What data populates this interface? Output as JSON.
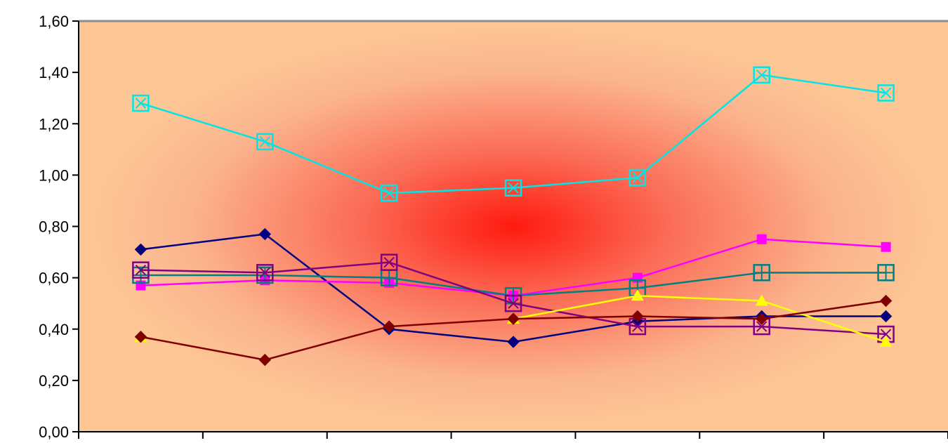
{
  "chart_data": {
    "type": "line",
    "title": "",
    "xlabel": "",
    "ylabel": "",
    "ylim": [
      0,
      1.6
    ],
    "y_ticks": [
      "0,00",
      "0,20",
      "0,40",
      "0,60",
      "0,80",
      "1,00",
      "1,20",
      "1,40",
      "1,60"
    ],
    "categories": [
      "",
      "",
      "",
      "",
      "",
      "",
      ""
    ],
    "grid": false,
    "legend": "none",
    "background": "radial gradient, red center fading to peach",
    "colors": {
      "bg_center": "#ff1a0f",
      "bg_edge": "#fdc795",
      "top_border": "#8c8c8c"
    },
    "series": [
      {
        "color": "#00e5e5",
        "marker": "square-x-hollow",
        "values": [
          1.28,
          1.13,
          0.93,
          0.95,
          0.99,
          1.39,
          1.32
        ]
      },
      {
        "color": "#000080",
        "marker": "diamond-filled",
        "values": [
          0.71,
          0.77,
          0.4,
          0.35,
          0.43,
          0.45,
          0.45
        ]
      },
      {
        "color": "#ff00ff",
        "marker": "square-filled",
        "values": [
          0.57,
          0.59,
          0.58,
          0.53,
          0.6,
          0.75,
          0.72
        ]
      },
      {
        "color": "#008080",
        "marker": "square-plus-hollow",
        "values": [
          0.61,
          0.61,
          0.6,
          0.53,
          0.56,
          0.62,
          0.62
        ]
      },
      {
        "color": "#800080",
        "marker": "square-x-hollow",
        "values": [
          0.63,
          0.62,
          0.66,
          0.5,
          0.41,
          0.41,
          0.38
        ]
      },
      {
        "color": "#ffff00",
        "marker": "triangle-filled",
        "values": [
          0.37,
          null,
          null,
          0.44,
          0.53,
          0.51,
          0.35
        ]
      },
      {
        "color": "#800000",
        "marker": "diamond-filled",
        "values": [
          0.37,
          0.28,
          0.41,
          0.44,
          0.45,
          0.44,
          0.51
        ]
      }
    ]
  }
}
